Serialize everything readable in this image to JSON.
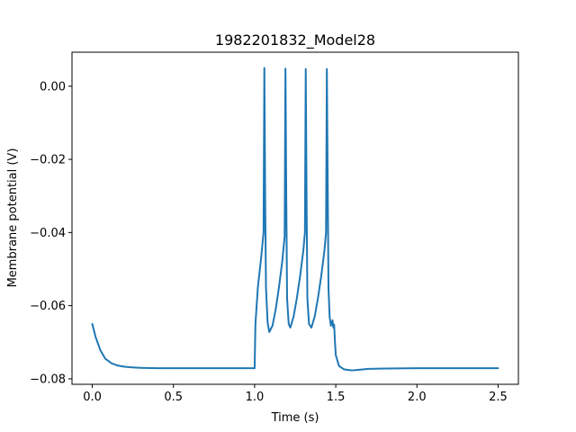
{
  "chart_data": {
    "type": "line",
    "title": "1982201832_Model28",
    "xlabel": "Time (s)",
    "ylabel": "Membrane potential (V)",
    "xlim": [
      -0.125,
      2.625
    ],
    "ylim": [
      -0.0815,
      0.0093
    ],
    "xticks": [
      0.0,
      0.5,
      1.0,
      1.5,
      2.0,
      2.5
    ],
    "xtick_labels": [
      "0.0",
      "0.5",
      "1.0",
      "1.5",
      "2.0",
      "2.5"
    ],
    "yticks": [
      0.0,
      -0.02,
      -0.04,
      -0.06,
      -0.08
    ],
    "ytick_labels": [
      "0.00",
      "−0.02",
      "−0.04",
      "−0.06",
      "−0.08"
    ],
    "grid": false,
    "color": "#1f77b4",
    "series": [
      {
        "name": "",
        "x": [
          0.0,
          0.02,
          0.05,
          0.08,
          0.12,
          0.16,
          0.2,
          0.25,
          0.3,
          0.4,
          0.5,
          0.7,
          0.9,
          1.0,
          1.005,
          1.02,
          1.04,
          1.055,
          1.06,
          1.065,
          1.07,
          1.08,
          1.09,
          1.11,
          1.13,
          1.15,
          1.17,
          1.185,
          1.19,
          1.195,
          1.2,
          1.21,
          1.22,
          1.24,
          1.26,
          1.28,
          1.3,
          1.31,
          1.315,
          1.32,
          1.325,
          1.335,
          1.35,
          1.37,
          1.39,
          1.41,
          1.43,
          1.44,
          1.445,
          1.45,
          1.455,
          1.462,
          1.47,
          1.48,
          1.485,
          1.49,
          1.495,
          1.5,
          1.52,
          1.55,
          1.58,
          1.6,
          1.65,
          1.7,
          1.8,
          2.0,
          2.2,
          2.5
        ],
        "y": [
          -0.065,
          -0.0685,
          -0.0722,
          -0.0745,
          -0.0758,
          -0.0764,
          -0.0767,
          -0.0769,
          -0.077,
          -0.0771,
          -0.0771,
          -0.0771,
          -0.0771,
          -0.0771,
          -0.065,
          -0.055,
          -0.047,
          -0.04,
          0.005,
          -0.03,
          -0.055,
          -0.0645,
          -0.0672,
          -0.0655,
          -0.061,
          -0.055,
          -0.048,
          -0.041,
          0.0048,
          -0.03,
          -0.058,
          -0.065,
          -0.066,
          -0.063,
          -0.058,
          -0.052,
          -0.045,
          -0.04,
          0.0047,
          -0.03,
          -0.058,
          -0.065,
          -0.066,
          -0.063,
          -0.058,
          -0.052,
          -0.045,
          -0.04,
          0.0047,
          -0.025,
          -0.055,
          -0.063,
          -0.0655,
          -0.064,
          -0.066,
          -0.0652,
          -0.07,
          -0.0735,
          -0.0765,
          -0.0774,
          -0.0776,
          -0.0777,
          -0.0775,
          -0.0773,
          -0.0772,
          -0.0771,
          -0.0771,
          -0.0771
        ]
      }
    ]
  }
}
